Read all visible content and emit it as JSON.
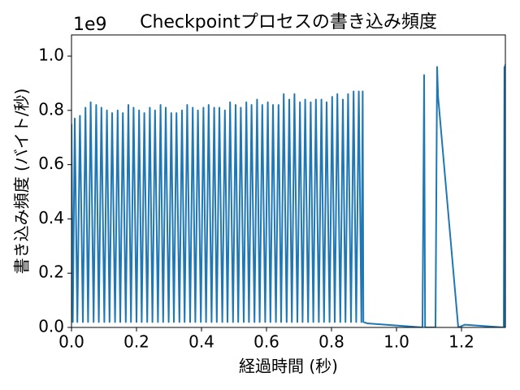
{
  "chart_data": {
    "type": "line",
    "title": "Checkpointプロセスの書き込み頻度",
    "xlabel": "経過時間 (秒)",
    "ylabel": "書き込み頻度 (バイト/秒)",
    "y_offset_label": "1e9",
    "color": "#1f77b4",
    "xlim": [
      0,
      1.335
    ],
    "ylim": [
      0,
      1.078
    ],
    "xticks": [
      {
        "value": 0,
        "label": "0.0"
      },
      0.2,
      0.4,
      0.6,
      0.8,
      {
        "value": 1,
        "label": "1.0"
      },
      1.2
    ],
    "yticks": [
      {
        "value": 0,
        "label": "0.0"
      },
      0.2,
      0.4,
      0.6,
      0.8,
      {
        "value": 1,
        "label": "1.0"
      }
    ],
    "x": [
      0.0,
      0.004,
      0.01,
      0.018,
      0.026,
      0.035,
      0.043,
      0.051,
      0.059,
      0.068,
      0.076,
      0.084,
      0.092,
      0.101,
      0.109,
      0.117,
      0.125,
      0.134,
      0.142,
      0.15,
      0.158,
      0.167,
      0.175,
      0.183,
      0.191,
      0.2,
      0.208,
      0.216,
      0.224,
      0.233,
      0.241,
      0.249,
      0.257,
      0.266,
      0.274,
      0.282,
      0.29,
      0.299,
      0.307,
      0.315,
      0.323,
      0.332,
      0.34,
      0.348,
      0.356,
      0.365,
      0.373,
      0.381,
      0.389,
      0.398,
      0.406,
      0.414,
      0.422,
      0.431,
      0.439,
      0.447,
      0.455,
      0.464,
      0.472,
      0.48,
      0.488,
      0.497,
      0.505,
      0.513,
      0.521,
      0.53,
      0.538,
      0.546,
      0.554,
      0.563,
      0.571,
      0.579,
      0.587,
      0.596,
      0.604,
      0.612,
      0.62,
      0.629,
      0.637,
      0.645,
      0.653,
      0.662,
      0.67,
      0.678,
      0.686,
      0.695,
      0.703,
      0.711,
      0.719,
      0.728,
      0.736,
      0.744,
      0.752,
      0.761,
      0.769,
      0.777,
      0.785,
      0.794,
      0.802,
      0.81,
      0.818,
      0.827,
      0.835,
      0.843,
      0.851,
      0.86,
      0.868,
      0.876,
      0.884,
      0.892,
      0.896,
      0.898,
      0.91,
      1.08,
      1.085,
      1.088,
      1.12,
      1.125,
      1.128,
      1.19,
      1.21,
      1.33,
      1.332,
      1.334,
      1.335
    ],
    "values": [
      0.75,
      0.02,
      0.77,
      0.02,
      0.78,
      0.02,
      0.81,
      0.02,
      0.83,
      0.02,
      0.82,
      0.02,
      0.81,
      0.02,
      0.8,
      0.02,
      0.79,
      0.02,
      0.8,
      0.02,
      0.79,
      0.02,
      0.82,
      0.02,
      0.81,
      0.02,
      0.8,
      0.02,
      0.79,
      0.02,
      0.81,
      0.02,
      0.8,
      0.02,
      0.82,
      0.02,
      0.81,
      0.02,
      0.79,
      0.02,
      0.79,
      0.02,
      0.8,
      0.02,
      0.82,
      0.02,
      0.81,
      0.02,
      0.8,
      0.02,
      0.81,
      0.02,
      0.82,
      0.02,
      0.81,
      0.02,
      0.81,
      0.02,
      0.8,
      0.02,
      0.83,
      0.02,
      0.82,
      0.02,
      0.81,
      0.02,
      0.83,
      0.02,
      0.82,
      0.02,
      0.84,
      0.02,
      0.82,
      0.02,
      0.83,
      0.02,
      0.82,
      0.02,
      0.82,
      0.02,
      0.86,
      0.02,
      0.84,
      0.02,
      0.86,
      0.02,
      0.83,
      0.02,
      0.84,
      0.02,
      0.83,
      0.02,
      0.84,
      0.02,
      0.84,
      0.02,
      0.83,
      0.02,
      0.85,
      0.02,
      0.86,
      0.02,
      0.84,
      0.02,
      0.86,
      0.02,
      0.87,
      0.02,
      0.87,
      0.02,
      0.87,
      0.02,
      0.015,
      0.0,
      0.93,
      0.0,
      0.0,
      0.96,
      0.85,
      0.0,
      0.01,
      0.0,
      0.96,
      0.0,
      0.97
    ]
  }
}
